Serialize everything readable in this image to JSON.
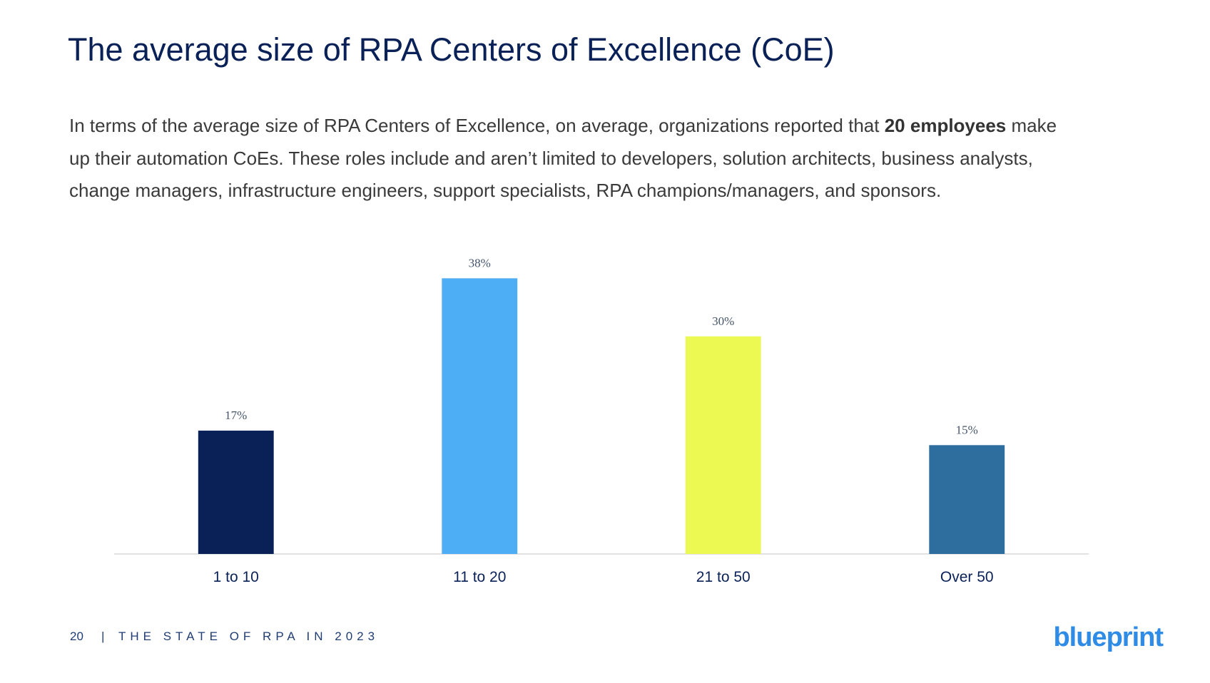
{
  "chart_data": {
    "type": "bar",
    "title": "The average size of RPA Centers of Excellence (CoE)",
    "description": [
      "In terms of the average size of RPA Centers of Excellence, on average, organizations reported that ",
      "20 employees",
      " make up their automation CoEs. These roles include and aren’t limited to developers, solution architects, business analysts, change managers, infrastructure engineers, support specialists, RPA champions/managers, and sponsors."
    ],
    "categories": [
      "1 to 10",
      "11 to 20",
      "21 to 50",
      "Over 50"
    ],
    "values": [
      17,
      38,
      30,
      15
    ],
    "value_labels": [
      "17%",
      "38%",
      "30%",
      "15%"
    ],
    "colors": [
      "#0a2158",
      "#4daef5",
      "#ecf952",
      "#2d6e9e"
    ],
    "ylim": [
      0,
      40
    ]
  },
  "footer": {
    "page": "20",
    "separator": "|",
    "text": "THE STATE OF RPA IN 2023"
  },
  "logo": "blueprint"
}
